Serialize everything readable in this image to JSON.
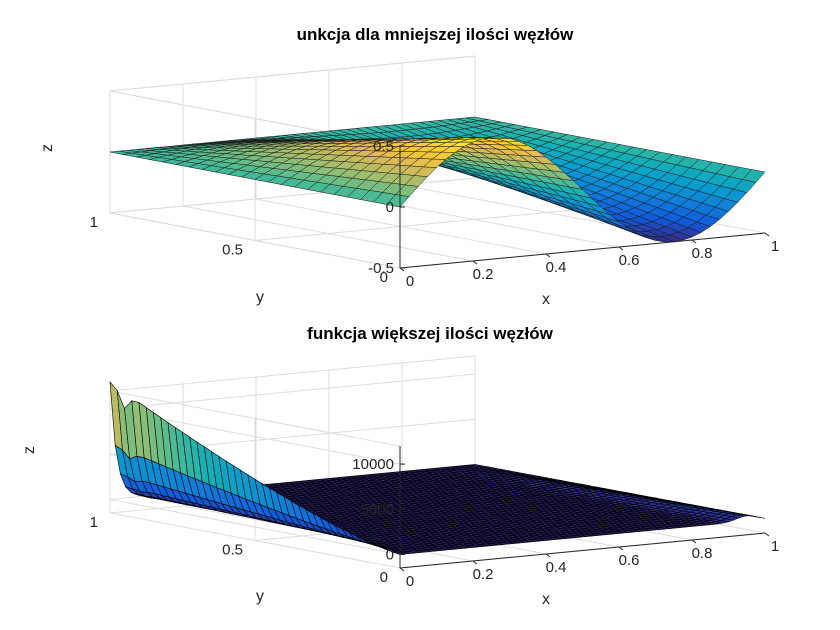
{
  "chart_data": [
    {
      "type": "surface",
      "title": "unkcja dla mniejszej ilości węzłów",
      "xlabel": "x",
      "ylabel": "y",
      "zlabel": "z",
      "xlim": [
        0,
        1
      ],
      "ylim": [
        0,
        1
      ],
      "zlim": [
        -0.5,
        0.5
      ],
      "x_ticks": [
        "0",
        "0.2",
        "0.4",
        "0.6",
        "0.8",
        "1"
      ],
      "y_ticks": [
        "0",
        "0.5",
        "1"
      ],
      "z_ticks": [
        "-0.5",
        "0",
        "0.5"
      ],
      "grid": true,
      "colormap": "parula",
      "surface": "z ≈ 0.5·sin(2πx)·(1−y) over 0≤x≤1, 0≤y≤1"
    },
    {
      "type": "surface",
      "title": "funkcja większej ilości węzłów",
      "xlabel": "x",
      "ylabel": "y",
      "zlabel": "z",
      "xlim": [
        0,
        1
      ],
      "ylim": [
        0,
        1
      ],
      "zlim": [
        0,
        12000
      ],
      "x_ticks": [
        "0",
        "0.2",
        "0.4",
        "0.6",
        "0.8",
        "1"
      ],
      "y_ticks": [
        "0",
        "0.5",
        "1"
      ],
      "z_ticks": [
        "0",
        "5000",
        "10000"
      ],
      "grid": true,
      "colormap": "parula",
      "surface": "interpolation spike along x=0 edge, peak ≈ 13000 near y=1, ≈ 0 elsewhere"
    }
  ]
}
